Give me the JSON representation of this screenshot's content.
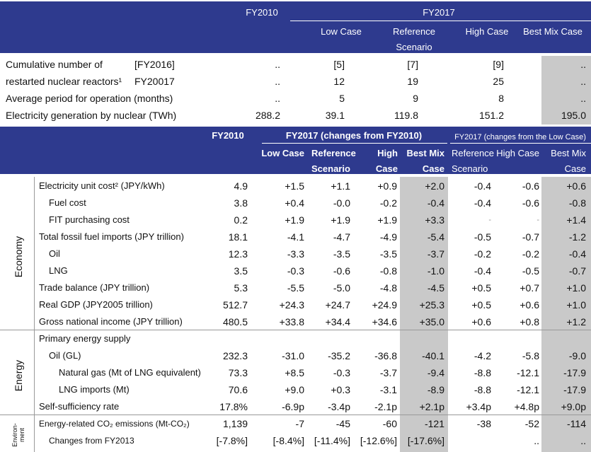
{
  "table1": {
    "header": {
      "fy2010": "FY2010",
      "fy2017": "FY2017",
      "columns": [
        "Low Case",
        "Reference Scenario",
        "High Case",
        "Best Mix Case"
      ]
    },
    "rows": [
      {
        "label": "Cumulative number of",
        "sublabel": "[FY2016]",
        "cells": [
          "..",
          "[5]",
          "[7]",
          "[9]",
          ".."
        ]
      },
      {
        "label": "restarted nuclear reactors¹",
        "sublabel": "FY20017",
        "cells": [
          "..",
          "12",
          "19",
          "25",
          ".."
        ]
      },
      {
        "label": "Average period for operation (months)",
        "cells": [
          "..",
          "5",
          "9",
          "8",
          ".."
        ]
      },
      {
        "label": "Electricity generation by nuclear (TWh)",
        "cells": [
          "288.2",
          "39.1",
          "119.8",
          "151.2",
          "195.0"
        ]
      }
    ]
  },
  "table2": {
    "header": {
      "fy2010": "FY2010",
      "group1": "FY2017 (changes from FY2010)",
      "group2": "FY2017 (changes from the Low Case)",
      "columns1": [
        "Low Case",
        "Reference Scenario",
        "High Case",
        "Best Mix Case"
      ],
      "columns2": [
        "Reference Scenario",
        "High Case",
        "Best Mix Case"
      ]
    },
    "sections": [
      {
        "name": "Economy",
        "rows": [
          {
            "label": "Electricity unit cost² (JPY/kWh)",
            "cells": [
              "4.9",
              "+1.5",
              "+1.1",
              "+0.9",
              "+2.0",
              "-0.4",
              "-0.6",
              "+0.6"
            ]
          },
          {
            "label": "Fuel cost",
            "cells": [
              "3.8",
              "+0.4",
              "-0.0",
              "-0.2",
              "-0.4",
              "-0.4",
              "-0.6",
              "-0.8"
            ]
          },
          {
            "label": "FIT purchasing cost",
            "cells": [
              "0.2",
              "+1.9",
              "+1.9",
              "+1.9",
              "+3.3",
              "-",
              "-",
              "+1.4"
            ]
          },
          {
            "label": "Total fossil fuel imports (JPY trillion)",
            "cells": [
              "18.1",
              "-4.1",
              "-4.7",
              "-4.9",
              "-5.4",
              "-0.5",
              "-0.7",
              "-1.2"
            ]
          },
          {
            "label": "Oil",
            "cells": [
              "12.3",
              "-3.3",
              "-3.5",
              "-3.5",
              "-3.7",
              "-0.2",
              "-0.2",
              "-0.4"
            ]
          },
          {
            "label": "LNG",
            "cells": [
              "3.5",
              "-0.3",
              "-0.6",
              "-0.8",
              "-1.0",
              "-0.4",
              "-0.5",
              "-0.7"
            ]
          },
          {
            "label": "Trade balance (JPY trillion)",
            "cells": [
              "5.3",
              "-5.5",
              "-5.0",
              "-4.8",
              "-4.5",
              "+0.5",
              "+0.7",
              "+1.0"
            ]
          },
          {
            "label": "Real GDP (JPY2005 trillion)",
            "cells": [
              "512.7",
              "+24.3",
              "+24.7",
              "+24.9",
              "+25.3",
              "+0.5",
              "+0.6",
              "+1.0"
            ]
          },
          {
            "label": "Gross national income (JPY trillion)",
            "cells": [
              "480.5",
              "+33.8",
              "+34.4",
              "+34.6",
              "+35.0",
              "+0.6",
              "+0.8",
              "+1.2"
            ]
          }
        ]
      },
      {
        "name": "Energy",
        "rows": [
          {
            "label": "Primary energy supply"
          },
          {
            "label": "Oil (GL)",
            "cells": [
              "232.3",
              "-31.0",
              "-35.2",
              "-36.8",
              "-40.1",
              "-4.2",
              "-5.8",
              "-9.0"
            ]
          },
          {
            "label": "Natural gas (Mt of LNG equivalent)",
            "cells": [
              "73.3",
              "+8.5",
              "-0.3",
              "-3.7",
              "-9.4",
              "-8.8",
              "-12.1",
              "-17.9"
            ]
          },
          {
            "label": "LNG imports (Mt)",
            "cells": [
              "70.6",
              "+9.0",
              "+0.3",
              "-3.1",
              "-8.9",
              "-8.8",
              "-12.1",
              "-17.9"
            ]
          },
          {
            "label": "Self-sufficiency rate",
            "cells": [
              "17.8%",
              "-6.9p",
              "-3.4p",
              "-2.1p",
              "+2.1p",
              "+3.4p",
              "+4.8p",
              "+9.0p"
            ]
          }
        ]
      },
      {
        "name": "Environ-ment",
        "rows": [
          {
            "label": "Energy-related CO₂ emissions (Mt-CO₂)",
            "cells": [
              "1,139",
              "-7",
              "-45",
              "-60",
              "-121",
              "-38",
              "-52",
              "-114"
            ]
          },
          {
            "label": "Changes from FY2013",
            "cells": [
              "[-7.8%]",
              "[-8.4%]",
              "[-11.4%]",
              "[-12.6%]",
              "[-17.6%]",
              null,
              "..",
              ".."
            ]
          }
        ]
      }
    ]
  }
}
